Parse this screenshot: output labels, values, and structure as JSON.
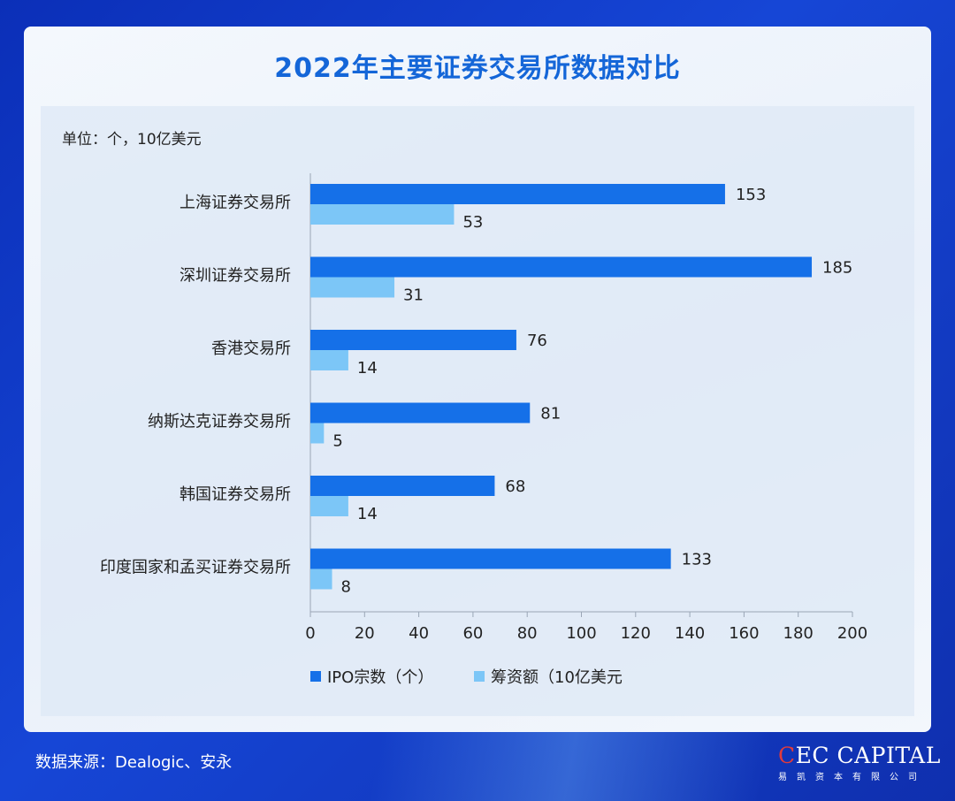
{
  "title": "2022年主要证券交易所数据对比",
  "unit_label": "单位：个，10亿美元",
  "source": "数据来源：Dealogic、安永",
  "logo": {
    "main": "CEC CAPITAL",
    "sub": "易凯资本有限公司"
  },
  "colors": {
    "ipo": "#1570e8",
    "funds": "#7cc6f7",
    "title": "#1466d8"
  },
  "chart_data": {
    "type": "bar",
    "orientation": "horizontal",
    "categories": [
      "上海证券交易所",
      "深圳证券交易所",
      "香港交易所",
      "纳斯达克证券交易所",
      "韩国证券交易所",
      "印度国家和孟买证券交易所"
    ],
    "series": [
      {
        "name": "IPO宗数（个）",
        "values": [
          153,
          185,
          76,
          81,
          68,
          133
        ]
      },
      {
        "name": "筹资额（10亿美元",
        "values": [
          53,
          31,
          14,
          5,
          14,
          8
        ]
      }
    ],
    "xlim": [
      0,
      200
    ],
    "xticks": [
      0,
      20,
      40,
      60,
      80,
      100,
      120,
      140,
      160,
      180,
      200
    ],
    "legend_position": "bottom"
  }
}
